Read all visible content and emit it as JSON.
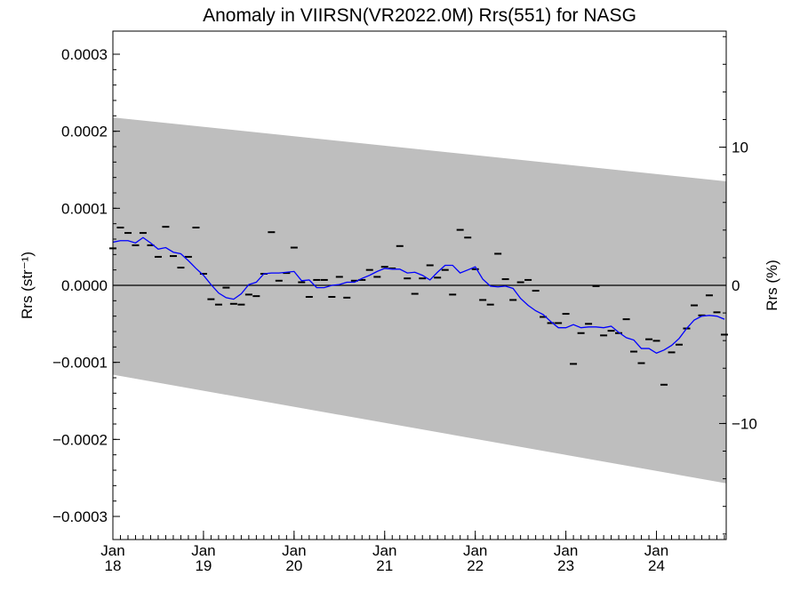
{
  "chart_data": {
    "type": "line",
    "title": "Anomaly in VIIRSN(VR2022.0M) Rrs(551) for NASG",
    "ylabel": "Rrs (str⁻¹)",
    "y2label": "Rrs (%)",
    "ylim": [
      -0.00033,
      0.00033
    ],
    "y2lim": [
      -18.4,
      18.4
    ],
    "xlim": [
      2018.0,
      2024.77
    ],
    "yticks": [
      {
        "value": 0.0003,
        "label": "0.0003"
      },
      {
        "value": 0.0002,
        "label": "0.0002"
      },
      {
        "value": 0.0001,
        "label": "0.0001"
      },
      {
        "value": 0.0,
        "label": "0.0000"
      },
      {
        "value": -0.0001,
        "label": "−0.0001"
      },
      {
        "value": -0.0002,
        "label": "−0.0002"
      },
      {
        "value": -0.0003,
        "label": "−0.0003"
      }
    ],
    "y2ticks": [
      {
        "value": 10,
        "label": "10"
      },
      {
        "value": 0,
        "label": "0"
      },
      {
        "value": -10,
        "label": "−10"
      }
    ],
    "xticks": [
      {
        "value": 2018,
        "month": "Jan",
        "year": "18"
      },
      {
        "value": 2019,
        "month": "Jan",
        "year": "19"
      },
      {
        "value": 2020,
        "month": "Jan",
        "year": "20"
      },
      {
        "value": 2021,
        "month": "Jan",
        "year": "21"
      },
      {
        "value": 2022,
        "month": "Jan",
        "year": "22"
      },
      {
        "value": 2023,
        "month": "Jan",
        "year": "23"
      },
      {
        "value": 2024,
        "month": "Jan",
        "year": "24"
      }
    ],
    "band": {
      "color": "#bebebe",
      "upper": [
        [
          2018.0,
          0.000218
        ],
        [
          2024.77,
          0.000135
        ]
      ],
      "lower": [
        [
          2018.0,
          -0.000116
        ],
        [
          2024.77,
          -0.000257
        ]
      ]
    },
    "zero_line": 0,
    "series": [
      {
        "kind": "monthly_anomaly",
        "color": "#000000",
        "x": [
          2018.0,
          2018.083,
          2018.167,
          2018.25,
          2018.333,
          2018.417,
          2018.5,
          2018.583,
          2018.667,
          2018.75,
          2018.833,
          2018.917,
          2019.0,
          2019.083,
          2019.167,
          2019.25,
          2019.333,
          2019.417,
          2019.5,
          2019.583,
          2019.667,
          2019.75,
          2019.833,
          2019.917,
          2020.0,
          2020.083,
          2020.167,
          2020.25,
          2020.333,
          2020.417,
          2020.5,
          2020.583,
          2020.667,
          2020.75,
          2020.833,
          2020.917,
          2021.0,
          2021.083,
          2021.167,
          2021.25,
          2021.333,
          2021.417,
          2021.5,
          2021.583,
          2021.667,
          2021.75,
          2021.833,
          2021.917,
          2022.0,
          2022.083,
          2022.167,
          2022.25,
          2022.333,
          2022.417,
          2022.5,
          2022.583,
          2022.667,
          2022.75,
          2022.833,
          2022.917,
          2023.0,
          2023.083,
          2023.167,
          2023.25,
          2023.333,
          2023.417,
          2023.5,
          2023.583,
          2023.667,
          2023.75,
          2023.833,
          2023.917,
          2024.0,
          2024.083,
          2024.167,
          2024.25,
          2024.333,
          2024.417,
          2024.5,
          2024.583,
          2024.667,
          2024.75
        ],
        "values": [
          4.8e-05,
          7.5e-05,
          6.8e-05,
          5.2e-05,
          6.8e-05,
          5.2e-05,
          3.7e-05,
          7.6e-05,
          3.8e-05,
          2.3e-05,
          3.7e-05,
          7.5e-05,
          1.5e-05,
          -1.8e-05,
          -2.5e-05,
          -3e-06,
          -2.4e-05,
          -2.5e-05,
          -1.2e-05,
          -1.4e-05,
          1.5e-05,
          6.9e-05,
          6e-06,
          1.6e-05,
          4.9e-05,
          4e-06,
          -1.5e-05,
          7e-06,
          7e-06,
          -1.5e-05,
          1.1e-05,
          -1.6e-05,
          6e-06,
          7e-06,
          2e-05,
          1.1e-05,
          2.4e-05,
          2.2e-05,
          5.1e-05,
          9e-06,
          -1.1e-05,
          9e-06,
          2.6e-05,
          1e-05,
          2e-05,
          -1.2e-05,
          7.2e-05,
          6.2e-05,
          2.1e-05,
          -1.9e-05,
          -2.5e-05,
          4.1e-05,
          8e-06,
          -1.9e-05,
          4e-06,
          7e-06,
          -7e-06,
          -4.1e-05,
          -4.9e-05,
          -4.9e-05,
          -3.7e-05,
          -0.000102,
          -6.2e-05,
          -5e-05,
          -1e-06,
          -6.5e-05,
          -5.9e-05,
          -6.2e-05,
          -4.4e-05,
          -8.6e-05,
          -0.000101,
          -7e-05,
          -7.2e-05,
          -0.000129,
          -8.7e-05,
          -7.7e-05,
          -5.6e-05,
          -2.6e-05,
          -3.9e-05,
          -1.3e-05,
          -3.5e-05,
          -6.4e-05
        ]
      },
      {
        "kind": "running_mean",
        "color": "#0000ff",
        "x": [
          2018.0,
          2018.083,
          2018.167,
          2018.25,
          2018.333,
          2018.417,
          2018.5,
          2018.583,
          2018.667,
          2018.75,
          2018.833,
          2018.917,
          2019.0,
          2019.083,
          2019.167,
          2019.25,
          2019.333,
          2019.417,
          2019.5,
          2019.583,
          2019.667,
          2019.75,
          2019.833,
          2019.917,
          2020.0,
          2020.083,
          2020.167,
          2020.25,
          2020.333,
          2020.417,
          2020.5,
          2020.583,
          2020.667,
          2020.75,
          2020.833,
          2020.917,
          2021.0,
          2021.083,
          2021.167,
          2021.25,
          2021.333,
          2021.417,
          2021.5,
          2021.583,
          2021.667,
          2021.75,
          2021.833,
          2021.917,
          2022.0,
          2022.083,
          2022.167,
          2022.25,
          2022.333,
          2022.417,
          2022.5,
          2022.583,
          2022.667,
          2022.75,
          2022.833,
          2022.917,
          2023.0,
          2023.083,
          2023.167,
          2023.25,
          2023.333,
          2023.417,
          2023.5,
          2023.583,
          2023.667,
          2023.75,
          2023.833,
          2023.917,
          2024.0,
          2024.083,
          2024.167,
          2024.25,
          2024.333,
          2024.417,
          2024.5,
          2024.583,
          2024.667,
          2024.75
        ],
        "values": [
          5.6e-05,
          5.8e-05,
          5.8e-05,
          5.5e-05,
          6.2e-05,
          5.5e-05,
          4.7e-05,
          4.9e-05,
          4.3e-05,
          4.1e-05,
          3.2e-05,
          2.2e-05,
          1.3e-05,
          1e-06,
          -1e-05,
          -1.6e-05,
          -1.8e-05,
          -1.1e-05,
          1e-06,
          4e-06,
          1.5e-05,
          1.6e-05,
          1.6e-05,
          1.7e-05,
          1.8e-05,
          6e-06,
          7e-06,
          -3e-06,
          -3e-06,
          0.0,
          1e-06,
          4e-06,
          4e-06,
          9e-06,
          1.3e-05,
          1.8e-05,
          2.2e-05,
          2.1e-05,
          2.1e-05,
          1.6e-05,
          1.7e-05,
          1.3e-05,
          7e-06,
          1.7e-05,
          2.6e-05,
          2.6e-05,
          1.6e-05,
          2e-05,
          2.4e-05,
          8e-06,
          -1e-06,
          -2e-06,
          -1e-06,
          -4e-06,
          -1.7e-05,
          -2.6e-05,
          -3.3e-05,
          -3.8e-05,
          -4.7e-05,
          -5.5e-05,
          -5.5e-05,
          -5.1e-05,
          -5.5e-05,
          -5.4e-05,
          -5.4e-05,
          -5.5e-05,
          -5.3e-05,
          -6.1e-05,
          -6.8e-05,
          -7.1e-05,
          -8.2e-05,
          -8.2e-05,
          -8.8e-05,
          -8.4e-05,
          -7.8e-05,
          -6.9e-05,
          -5.6e-05,
          -4.5e-05,
          -4e-05,
          -3.9e-05,
          -4e-05,
          -4.4e-05
        ]
      }
    ]
  }
}
